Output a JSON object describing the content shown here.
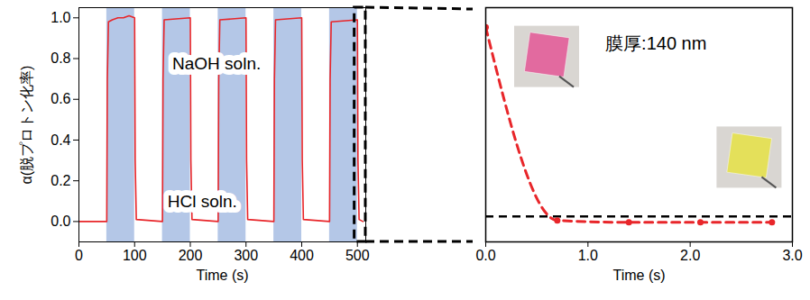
{
  "chart_data": [
    {
      "type": "line",
      "xlabel": "Time (s)",
      "ylabel": "α(脱プロトン化率)",
      "x": [
        0,
        50,
        51,
        53,
        60,
        70,
        80,
        90,
        100,
        101,
        103,
        150,
        151,
        153,
        200,
        201,
        203,
        250,
        251,
        253,
        300,
        301,
        303,
        350,
        351,
        353,
        400,
        401,
        403,
        450,
        451,
        453,
        500,
        501,
        503,
        510
      ],
      "values": [
        0,
        0,
        0.7,
        0.98,
        0.99,
        1.0,
        1.0,
        1.01,
        1.0,
        0.3,
        0.01,
        0,
        0.7,
        0.99,
        1.0,
        0.3,
        0.01,
        0,
        0.7,
        0.99,
        1.0,
        0.3,
        0.01,
        0,
        0.7,
        0.99,
        1.0,
        0.3,
        0.01,
        0,
        0.7,
        0.98,
        0.99,
        0.3,
        0.01,
        0
      ],
      "color": "#e8262a",
      "line_style": "solid",
      "bands": {
        "color": "#b4c7e7",
        "ranges": [
          [
            50,
            100
          ],
          [
            150,
            200
          ],
          [
            250,
            300
          ],
          [
            350,
            400
          ],
          [
            450,
            500
          ]
        ]
      },
      "annotations": [
        "NaOH soln.",
        "HCl soln."
      ],
      "zoom_range": [
        495,
        515
      ],
      "xlim": [
        0,
        515
      ],
      "xticks": [
        0,
        100,
        200,
        300,
        400,
        500
      ],
      "ylim": [
        -0.1,
        1.05
      ],
      "yticks": [
        0,
        0.2,
        0.4,
        0.6,
        0.8,
        1
      ]
    },
    {
      "type": "line",
      "xlabel": "Time (s)",
      "x": [
        0,
        0.7,
        1.4,
        2.1,
        2.8
      ],
      "values": [
        1.0,
        0.01,
        0.0,
        0.0,
        0.0
      ],
      "color": "#e8262a",
      "line_style": "dashed",
      "marker": "circle",
      "reference_line": {
        "value": 0.03,
        "color": "#000000",
        "line_style": "dashed"
      },
      "annotations": [
        "膜厚:140 nm"
      ],
      "xlim": [
        0,
        3
      ],
      "xticks": [
        0,
        1,
        2,
        3
      ],
      "ylim": [
        -0.1,
        1.1
      ],
      "tick_labels": "x"
    }
  ]
}
